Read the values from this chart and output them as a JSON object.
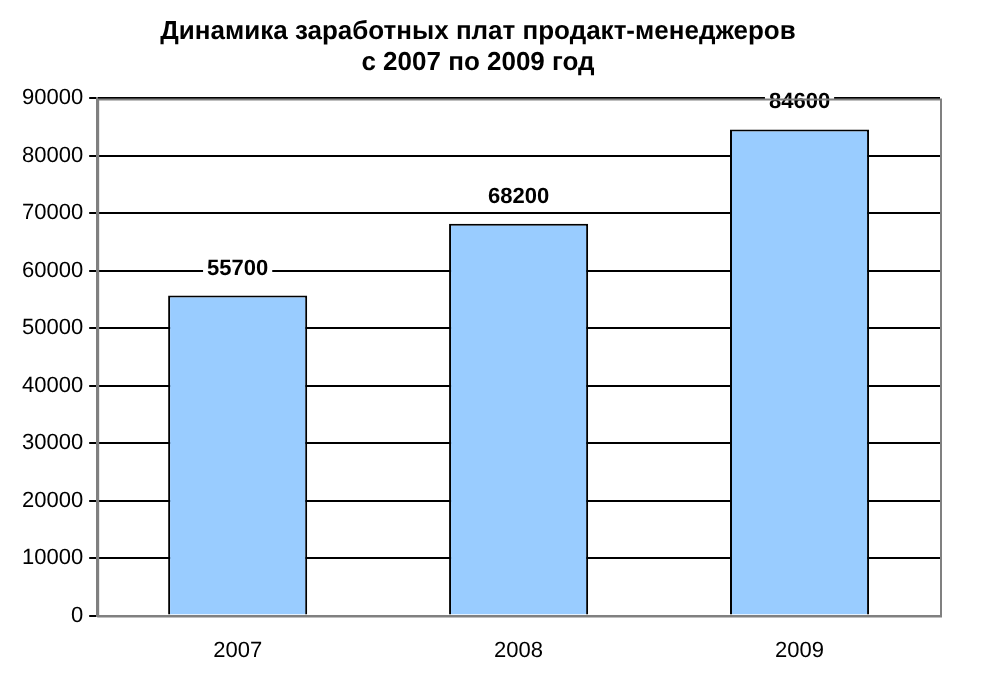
{
  "chart_data": {
    "type": "bar",
    "title": "Динамика заработных плат продакт-менеджеров\nс 2007 по 2009 год",
    "categories": [
      "2007",
      "2008",
      "2009"
    ],
    "values": [
      55700,
      68200,
      84600
    ],
    "color": "#99ccff",
    "ylim": [
      0,
      90000
    ],
    "yticks": [
      0,
      10000,
      20000,
      30000,
      40000,
      50000,
      60000,
      70000,
      80000,
      90000
    ],
    "grid": "y",
    "data_labels": true,
    "legend": false
  }
}
